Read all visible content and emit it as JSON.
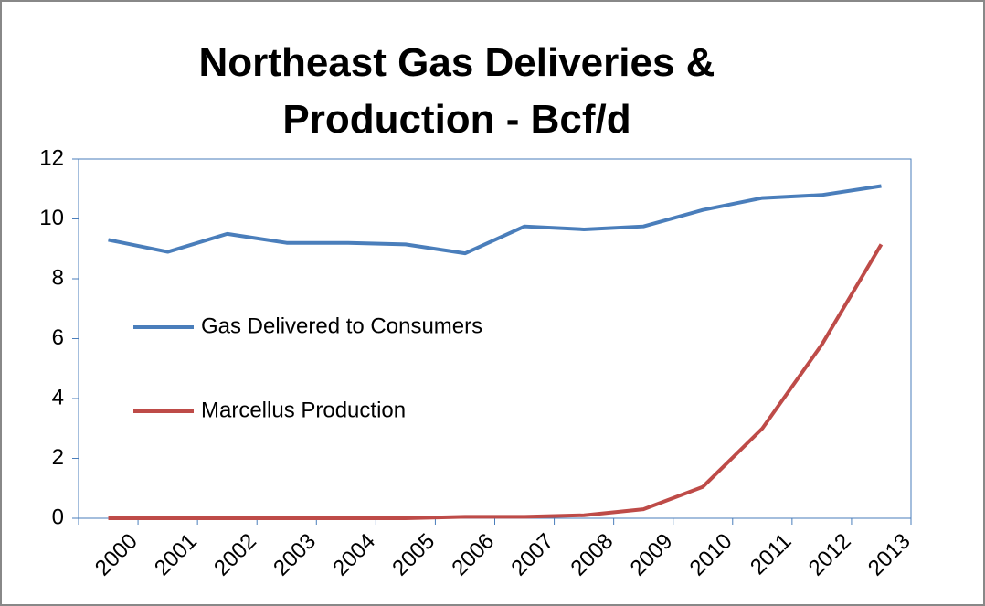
{
  "chart_data": {
    "type": "line",
    "title": "Northeast Gas Deliveries & Production - Bcf/d",
    "categories": [
      "2000",
      "2001",
      "2002",
      "2003",
      "2004",
      "2005",
      "2006",
      "2007",
      "2008",
      "2009",
      "2010",
      "2011",
      "2012",
      "2013"
    ],
    "series": [
      {
        "name": "Gas Delivered to Consumers",
        "color": "#4a7ebb",
        "values": [
          9.3,
          8.9,
          9.5,
          9.2,
          9.2,
          9.15,
          8.85,
          9.75,
          9.65,
          9.75,
          10.3,
          10.7,
          10.8,
          11.1
        ]
      },
      {
        "name": "Marcellus Production",
        "color": "#be4b48",
        "values": [
          0,
          0,
          0,
          0,
          0,
          0,
          0.05,
          0.05,
          0.1,
          0.3,
          1.05,
          3,
          5.8,
          9.15
        ]
      }
    ],
    "ylim": [
      0,
      12
    ],
    "yticks": [
      0,
      2,
      4,
      6,
      8,
      10,
      12
    ],
    "grid": false
  }
}
